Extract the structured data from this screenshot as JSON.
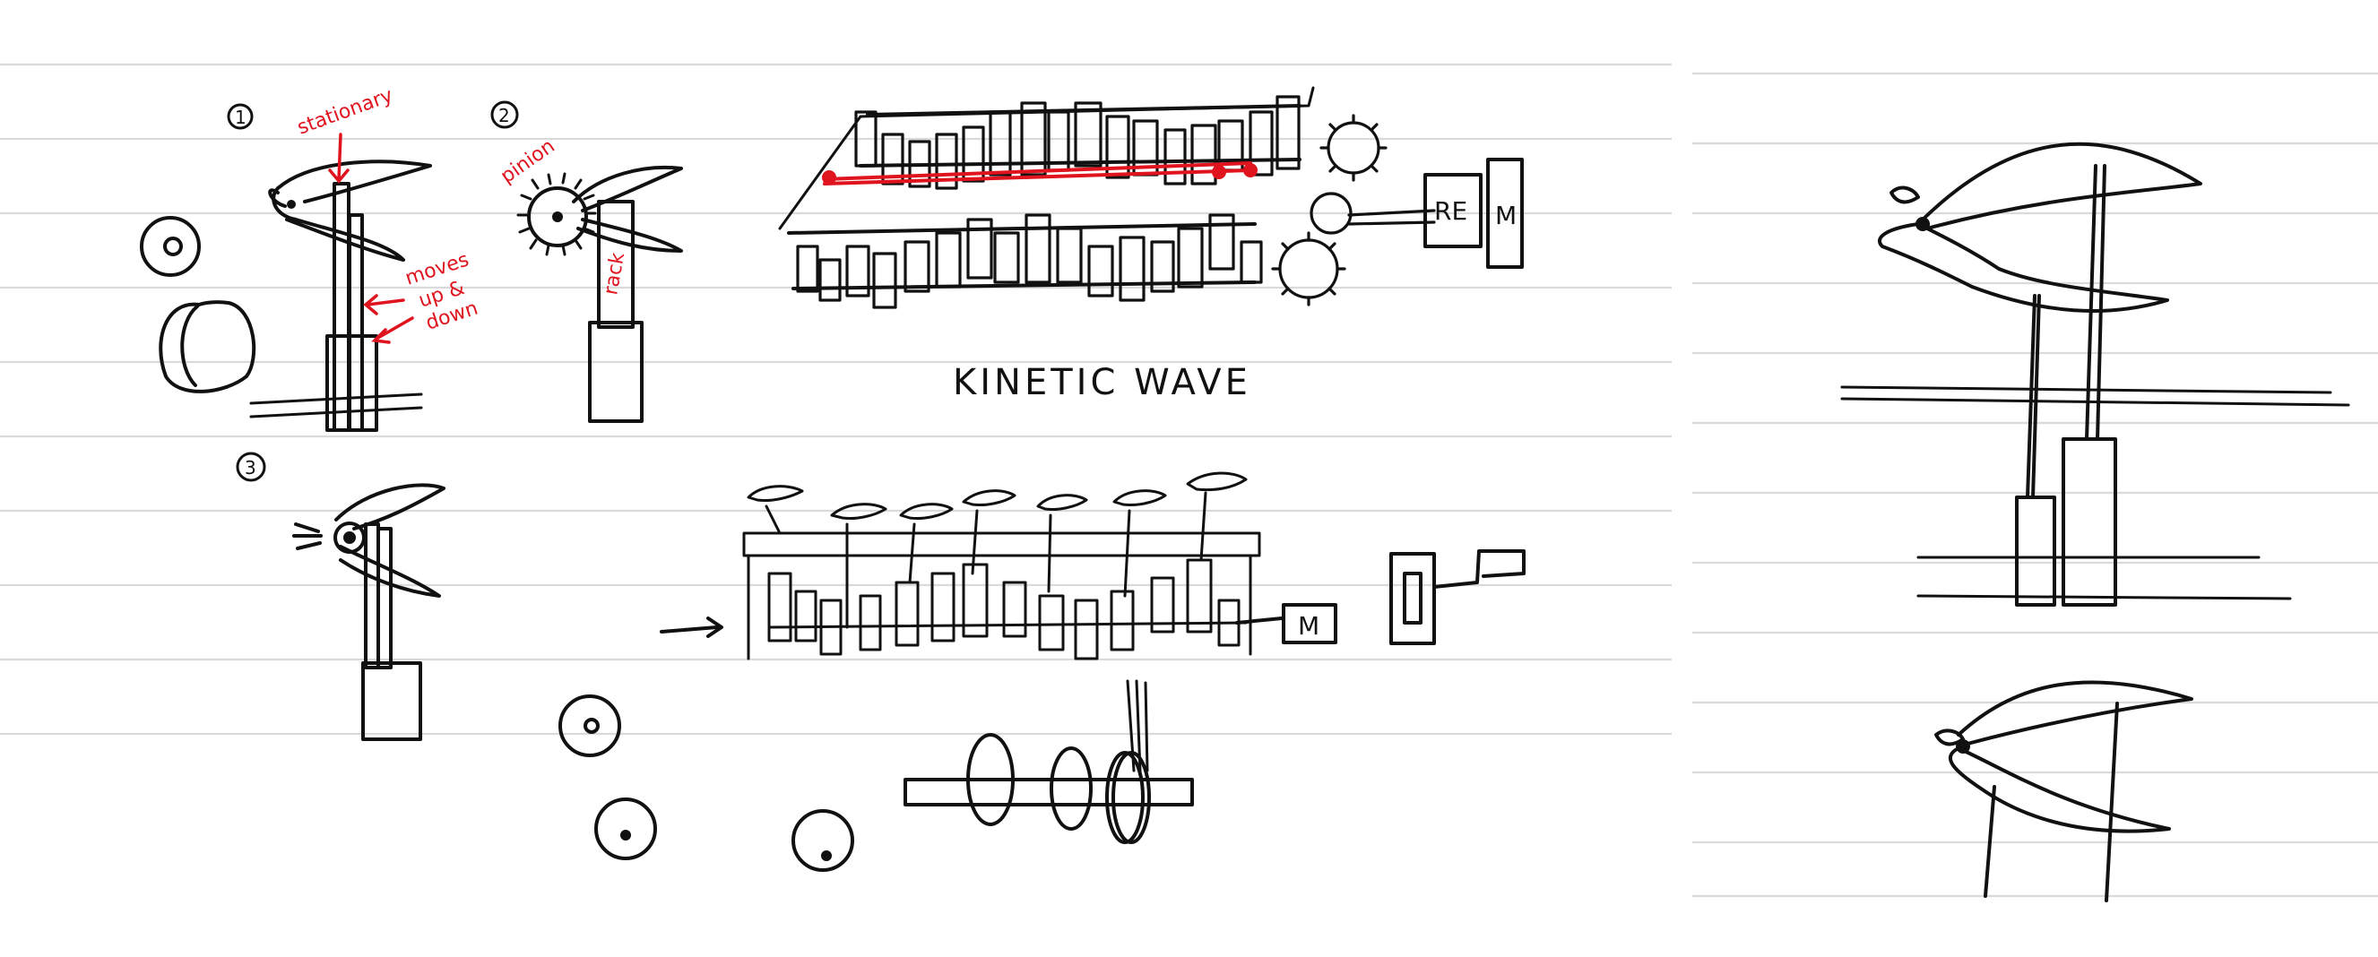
{
  "colors": {
    "ink": "#111111",
    "annotation_red": "#e0141e",
    "rule_line": "#d9d9d9",
    "background": "#ffffff"
  },
  "labels": {
    "step1": "1",
    "step2": "2",
    "step3": "3",
    "stationary": "stationary",
    "moves_up_down_1": "moves",
    "moves_up_down_2": "up &",
    "moves_up_down_3": "down",
    "pinion": "pinion",
    "rack": "rack",
    "title": "KINETIC WAVE",
    "re_box": "RE",
    "motor_top": "M",
    "motor_bottom": "M"
  }
}
